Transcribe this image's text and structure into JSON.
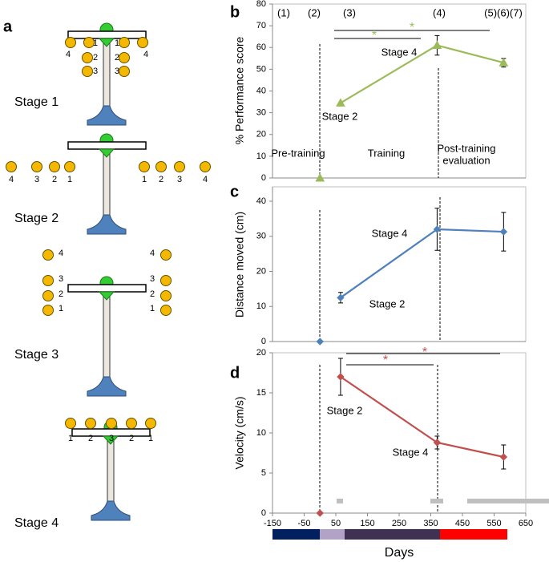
{
  "panel_a": {
    "label": "a",
    "stages": [
      {
        "name": "Stage 1",
        "labels": [
          "4",
          "1",
          "1",
          "4",
          "2",
          "2",
          "3",
          "3"
        ]
      },
      {
        "name": "Stage 2",
        "labels": [
          "4",
          "3",
          "2",
          "1",
          "1",
          "2",
          "3",
          "4"
        ]
      },
      {
        "name": "Stage 3",
        "labels": [
          "4",
          "3",
          "2",
          "1",
          "4",
          "3",
          "2",
          "1"
        ]
      },
      {
        "name": "Stage 4",
        "labels": [
          "1",
          "2",
          "3",
          "2",
          "1"
        ]
      }
    ]
  },
  "chart_data": [
    {
      "type": "line",
      "panel_label": "b",
      "ylabel": "% Performance score",
      "marker": "triangle",
      "xlim": [
        -150,
        650
      ],
      "ylim": [
        0,
        80
      ],
      "yticks": [
        0,
        10,
        20,
        30,
        40,
        50,
        60,
        70,
        80
      ],
      "x": [
        0,
        65,
        370,
        580
      ],
      "series": [
        {
          "color": "#9bbb59",
          "values": [
            0,
            34.5,
            61,
            53
          ],
          "errors": [
            null,
            null,
            4.5,
            2
          ]
        }
      ],
      "annotations": [
        "(1)",
        "(2)",
        "(3)",
        "(4)",
        "(5)(6)(7)",
        "Stage 4",
        "Stage 2",
        "Pre-training",
        "Training",
        "Post-training",
        "evaluation",
        "*",
        "*"
      ]
    },
    {
      "type": "line",
      "panel_label": "c",
      "ylabel": "Distance moved (cm)",
      "marker": "diamond",
      "xlim": [
        -150,
        650
      ],
      "ylim": [
        0,
        40
      ],
      "yticks": [
        0,
        10,
        20,
        30,
        40
      ],
      "x": [
        0,
        65,
        370,
        580
      ],
      "series": [
        {
          "color": "#4f81bd",
          "values": [
            0,
            12.5,
            32,
            31.3
          ],
          "errors": [
            null,
            1.5,
            6,
            5.5
          ]
        }
      ],
      "annotations": [
        "Stage 4",
        "Stage 2"
      ]
    },
    {
      "type": "line",
      "panel_label": "d",
      "ylabel": "Velocity (cm/s)",
      "xlabel": "Days",
      "marker": "diamond",
      "xlim": [
        -150,
        650
      ],
      "xticks": [
        -150,
        -50,
        50,
        150,
        250,
        350,
        450,
        550,
        650
      ],
      "ylim": [
        0,
        20
      ],
      "yticks": [
        0,
        5,
        10,
        15,
        20
      ],
      "x": [
        0,
        65,
        370,
        580
      ],
      "series": [
        {
          "color": "#c0504d",
          "values": [
            0,
            17,
            8.8,
            7
          ],
          "errors": [
            null,
            2.3,
            0.8,
            1.5
          ]
        }
      ],
      "annotations": [
        "Stage 2",
        "Stage 4",
        "*",
        "*"
      ]
    }
  ]
}
